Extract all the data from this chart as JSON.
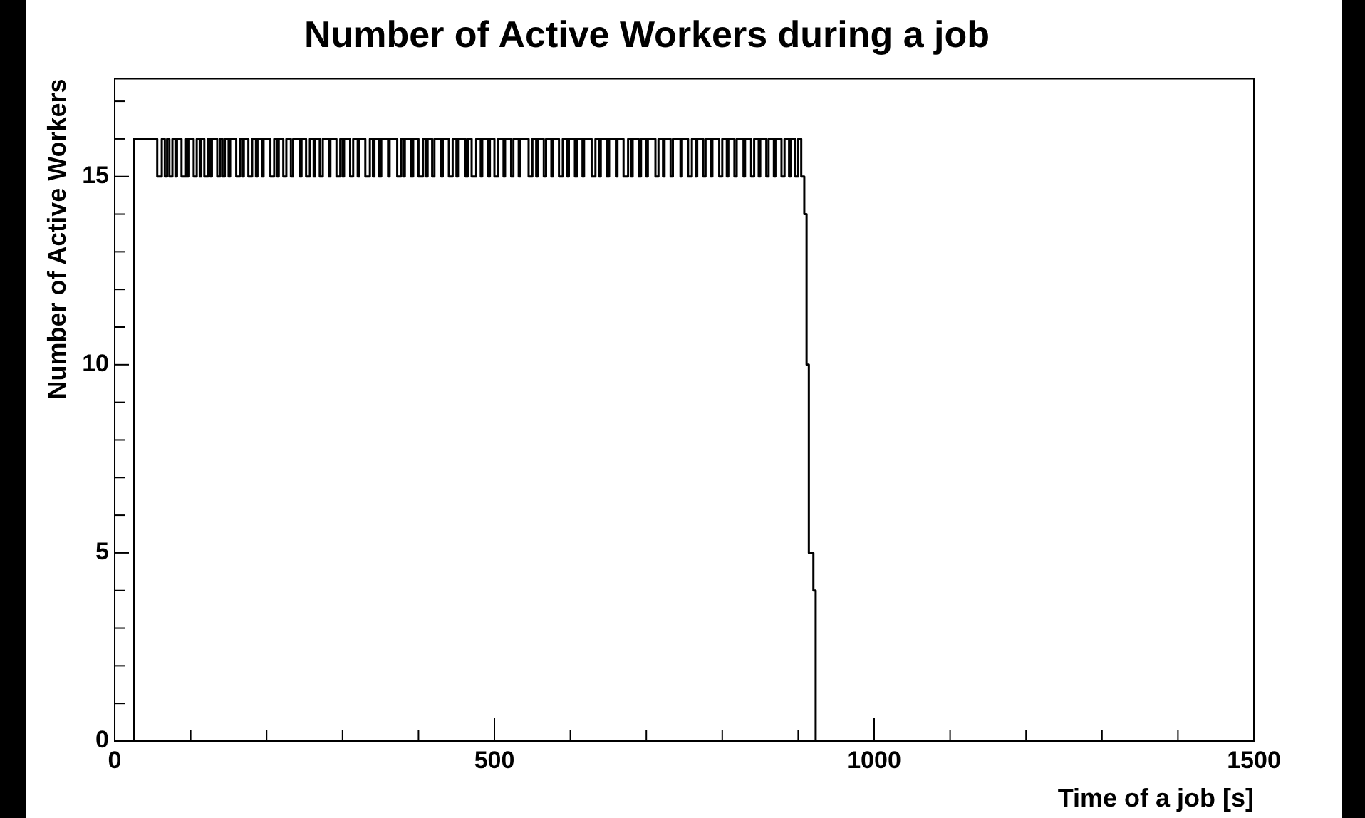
{
  "chart_data": {
    "type": "step",
    "title": "Number of Active Workers during a job",
    "xlabel": "Time of a job [s]",
    "ylabel": "Number of Active Workers",
    "xlim": [
      0,
      1500
    ],
    "ylim": [
      0,
      17.6
    ],
    "xticks": [
      0,
      {
        "value": 100,
        "label": null
      },
      {
        "value": 200,
        "label": null
      },
      {
        "value": 300,
        "label": null
      },
      {
        "value": 400,
        "label": null
      },
      500,
      {
        "value": 600,
        "label": null
      },
      {
        "value": 700,
        "label": null
      },
      {
        "value": 800,
        "label": null
      },
      {
        "value": 900,
        "label": null
      },
      1000,
      {
        "value": 1100,
        "label": null
      },
      {
        "value": 1200,
        "label": null
      },
      {
        "value": 1300,
        "label": null
      },
      {
        "value": 1400,
        "label": null
      },
      1500
    ],
    "yticks": [
      0,
      {
        "value": 1,
        "label": null
      },
      {
        "value": 2,
        "label": null
      },
      {
        "value": 3,
        "label": null
      },
      {
        "value": 4,
        "label": null
      },
      5,
      {
        "value": 6,
        "label": null
      },
      {
        "value": 7,
        "label": null
      },
      {
        "value": 8,
        "label": null
      },
      {
        "value": 9,
        "label": null
      },
      10,
      {
        "value": 11,
        "label": null
      },
      {
        "value": 12,
        "label": null
      },
      {
        "value": 13,
        "label": null
      },
      {
        "value": 14,
        "label": null
      },
      15,
      {
        "value": 16,
        "label": null
      },
      {
        "value": 17,
        "label": null
      }
    ],
    "grid": false,
    "legend": false,
    "marker": "none",
    "line_style": "solid",
    "series": [
      {
        "color": "#000000",
        "x": [
          0,
          25,
          56,
          62,
          66,
          69,
          72,
          76,
          80,
          82,
          88,
          93,
          95,
          97,
          104,
          108,
          112,
          114,
          118,
          123,
          126,
          128,
          135,
          139,
          142,
          145,
          150,
          152,
          160,
          165,
          168,
          170,
          176,
          181,
          186,
          188,
          194,
          196,
          205,
          210,
          214,
          216,
          222,
          226,
          232,
          235,
          244,
          246,
          252,
          257,
          262,
          264,
          270,
          274,
          282,
          284,
          292,
          297,
          300,
          302,
          310,
          314,
          320,
          322,
          330,
          336,
          340,
          342,
          348,
          351,
          360,
          362,
          372,
          377,
          380,
          382,
          390,
          393,
          400,
          406,
          410,
          412,
          418,
          421,
          430,
          432,
          440,
          445,
          450,
          452,
          462,
          465,
          470,
          476,
          482,
          484,
          492,
          494,
          500,
          505,
          512,
          514,
          522,
          525,
          532,
          534,
          545,
          550,
          555,
          557,
          565,
          568,
          575,
          577,
          585,
          590,
          596,
          598,
          606,
          609,
          616,
          618,
          628,
          633,
          638,
          640,
          648,
          651,
          660,
          662,
          670,
          676,
          680,
          682,
          690,
          693,
          700,
          702,
          712,
          716,
          722,
          724,
          732,
          735,
          745,
          747,
          755,
          760,
          765,
          767,
          775,
          778,
          785,
          787,
          796,
          800,
          806,
          808,
          816,
          819,
          828,
          830,
          838,
          842,
          848,
          850,
          858,
          861,
          868,
          870,
          878,
          882,
          888,
          890,
          896,
          900,
          904,
          908,
          911,
          914,
          920,
          923,
          1500
        ],
        "values": [
          0,
          16,
          15,
          16,
          15,
          16,
          15,
          16,
          15,
          16,
          15,
          16,
          15,
          16,
          15,
          16,
          15,
          16,
          15,
          16,
          15,
          16,
          15,
          16,
          15,
          16,
          15,
          16,
          15,
          16,
          15,
          16,
          15,
          16,
          15,
          16,
          15,
          16,
          15,
          16,
          15,
          16,
          15,
          16,
          15,
          16,
          15,
          16,
          15,
          16,
          15,
          16,
          15,
          16,
          15,
          16,
          15,
          16,
          15,
          16,
          15,
          16,
          15,
          16,
          15,
          16,
          15,
          16,
          15,
          16,
          15,
          16,
          15,
          16,
          15,
          16,
          15,
          16,
          15,
          16,
          15,
          16,
          15,
          16,
          15,
          16,
          15,
          16,
          15,
          16,
          15,
          16,
          15,
          16,
          15,
          16,
          15,
          16,
          15,
          16,
          15,
          16,
          15,
          16,
          15,
          16,
          15,
          16,
          15,
          16,
          15,
          16,
          15,
          16,
          15,
          16,
          15,
          16,
          15,
          16,
          15,
          16,
          15,
          16,
          15,
          16,
          15,
          16,
          15,
          16,
          15,
          16,
          15,
          16,
          15,
          16,
          15,
          16,
          15,
          16,
          15,
          16,
          15,
          16,
          15,
          16,
          15,
          16,
          15,
          16,
          15,
          16,
          15,
          16,
          15,
          16,
          15,
          16,
          15,
          16,
          15,
          16,
          15,
          16,
          15,
          16,
          15,
          16,
          15,
          16,
          15,
          16,
          15,
          16,
          15,
          16,
          15,
          14,
          10,
          5,
          4,
          0,
          0
        ]
      }
    ]
  }
}
